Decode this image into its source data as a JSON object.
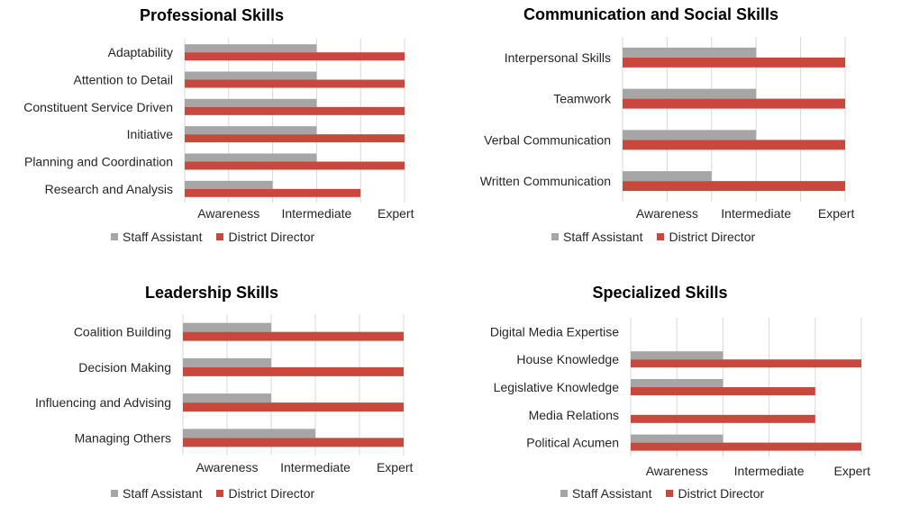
{
  "colors": {
    "staff": "#a6a6a6",
    "director": "#c9483e",
    "grid": "#d9d9d9"
  },
  "chart_data": [
    {
      "type": "bar",
      "orientation": "horizontal",
      "title": "Professional Skills",
      "categories": [
        "Adaptability",
        "Attention to Detail",
        "Constituent Service Driven",
        "Initiative",
        "Planning and Coordination",
        "Research and Analysis"
      ],
      "series": [
        {
          "name": "Staff Assistant",
          "values": [
            1.5,
            1.5,
            1.5,
            1.5,
            1.5,
            1.0
          ]
        },
        {
          "name": "District Director",
          "values": [
            2.5,
            2.5,
            2.5,
            2.5,
            2.5,
            2.0
          ]
        }
      ],
      "x_ticks": [
        "Awareness",
        "Intermediate",
        "Expert"
      ],
      "xlim": [
        0,
        2.5
      ],
      "grid": true,
      "legend": "bottom"
    },
    {
      "type": "bar",
      "orientation": "horizontal",
      "title": "Communication and Social Skills",
      "categories": [
        "Interpersonal Skills",
        "Teamwork",
        "Verbal Communication",
        "Written Communication"
      ],
      "series": [
        {
          "name": "Staff Assistant",
          "values": [
            1.5,
            1.5,
            1.5,
            1.0
          ]
        },
        {
          "name": "District Director",
          "values": [
            2.5,
            2.5,
            2.5,
            2.5
          ]
        }
      ],
      "x_ticks": [
        "Awareness",
        "Intermediate",
        "Expert"
      ],
      "xlim": [
        0,
        2.5
      ],
      "grid": true,
      "legend": "bottom"
    },
    {
      "type": "bar",
      "orientation": "horizontal",
      "title": "Leadership Skills",
      "categories": [
        "Coalition Building",
        "Decision Making",
        "Influencing and Advising",
        "Managing Others"
      ],
      "series": [
        {
          "name": "Staff Assistant",
          "values": [
            1.0,
            1.0,
            1.0,
            1.5
          ]
        },
        {
          "name": "District Director",
          "values": [
            2.5,
            2.5,
            2.5,
            2.5
          ]
        }
      ],
      "x_ticks": [
        "Awareness",
        "Intermediate",
        "Expert"
      ],
      "xlim": [
        0,
        2.5
      ],
      "grid": true,
      "legend": "bottom"
    },
    {
      "type": "bar",
      "orientation": "horizontal",
      "title": "Specialized Skills",
      "categories": [
        "Digital Media Expertise",
        "House Knowledge",
        "Legislative Knowledge",
        "Media Relations",
        "Political Acumen"
      ],
      "series": [
        {
          "name": "Staff Assistant",
          "values": [
            0,
            1.0,
            1.0,
            0,
            1.0
          ]
        },
        {
          "name": "District Director",
          "values": [
            0,
            2.5,
            2.0,
            2.0,
            2.5
          ]
        }
      ],
      "x_ticks": [
        "Awareness",
        "Intermediate",
        "Expert"
      ],
      "xlim": [
        0,
        2.5
      ],
      "grid": true,
      "legend": "bottom"
    }
  ]
}
